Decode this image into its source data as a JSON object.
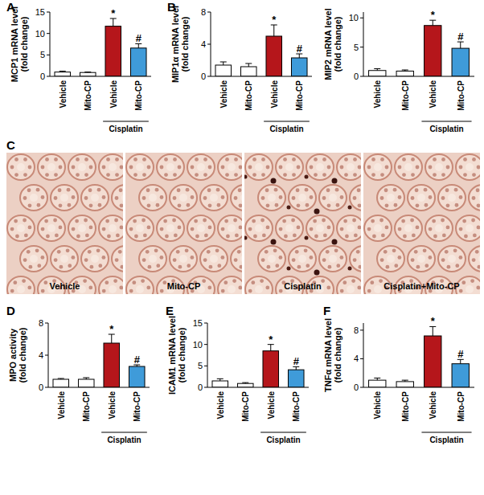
{
  "chart_data": [
    {
      "type": "bar",
      "panel": "A",
      "y_label": [
        "MCP1 mRNA level",
        "(fold change)"
      ],
      "categories": [
        "Vehicle",
        "Mito-CP",
        "Vehicle",
        "Mito-CP"
      ],
      "values": [
        1.0,
        0.9,
        11.7,
        6.6
      ],
      "errors": [
        0.2,
        0.1,
        1.8,
        1.0
      ],
      "colors": [
        "#ffffff",
        "#ffffff",
        "#b5161b",
        "#3f9bd9"
      ],
      "significance": [
        null,
        null,
        "*",
        "#"
      ],
      "annotation": "Cisplatin",
      "ylim": [
        0,
        15
      ],
      "yticks": [
        0,
        5,
        10,
        15
      ]
    },
    {
      "type": "bar",
      "panel": "B",
      "y_label": [
        "MIP1α mRNA level",
        "(fold change)"
      ],
      "categories": [
        "Vehicle",
        "Mito-CP",
        "Vehicle",
        "Mito-CP"
      ],
      "values": [
        1.4,
        1.2,
        5.0,
        2.3
      ],
      "errors": [
        0.4,
        0.4,
        1.4,
        0.5
      ],
      "colors": [
        "#ffffff",
        "#ffffff",
        "#b5161b",
        "#3f9bd9"
      ],
      "significance": [
        null,
        null,
        "*",
        "#"
      ],
      "annotation": "Cisplatin",
      "ylim": [
        0,
        8
      ],
      "yticks": [
        0,
        4,
        8
      ]
    },
    {
      "type": "bar",
      "y_label": [
        "MIP2 mRNA level",
        "(fold change)"
      ],
      "categories": [
        "Vehicle",
        "Mito-CP",
        "Vehicle",
        "Mito-CP"
      ],
      "values": [
        1.0,
        0.9,
        8.7,
        4.8
      ],
      "errors": [
        0.3,
        0.2,
        0.9,
        1.1
      ],
      "colors": [
        "#ffffff",
        "#ffffff",
        "#b5161b",
        "#3f9bd9"
      ],
      "significance": [
        null,
        null,
        "*",
        "#"
      ],
      "annotation": "Cisplatin",
      "ylim": [
        0,
        11
      ],
      "yticks": [
        0,
        5,
        10
      ]
    },
    {
      "type": "bar",
      "panel": "D",
      "y_label": [
        "MPO activity",
        "(fold change)"
      ],
      "categories": [
        "Vehicle",
        "Mito-CP",
        "Vehicle",
        "Mito-CP"
      ],
      "values": [
        1.0,
        1.0,
        5.5,
        2.6
      ],
      "errors": [
        0.1,
        0.2,
        1.1,
        0.2
      ],
      "colors": [
        "#ffffff",
        "#ffffff",
        "#b5161b",
        "#3f9bd9"
      ],
      "significance": [
        null,
        null,
        "*",
        "#"
      ],
      "annotation": "Cisplatin",
      "ylim": [
        0,
        8
      ],
      "yticks": [
        0,
        4,
        8
      ]
    },
    {
      "type": "bar",
      "panel": "E",
      "y_label": [
        "ICAM1 mRNA level",
        "(fold change)"
      ],
      "categories": [
        "Vehicle",
        "Mito-CP",
        "Vehicle",
        "Mito-CP"
      ],
      "values": [
        1.5,
        0.9,
        8.5,
        4.1
      ],
      "errors": [
        0.5,
        0.2,
        1.5,
        0.7
      ],
      "colors": [
        "#ffffff",
        "#ffffff",
        "#b5161b",
        "#3f9bd9"
      ],
      "significance": [
        null,
        null,
        "*",
        "#"
      ],
      "annotation": "Cisplatin",
      "ylim": [
        0,
        15
      ],
      "yticks": [
        0,
        5,
        10,
        15
      ]
    },
    {
      "type": "bar",
      "panel": "F",
      "y_label": [
        "TNFα mRNA level",
        "(fold change)"
      ],
      "categories": [
        "Vehicle",
        "Mito-CP",
        "Vehicle",
        "Mito-CP"
      ],
      "values": [
        1.0,
        0.8,
        7.2,
        3.3
      ],
      "errors": [
        0.3,
        0.2,
        1.3,
        0.6
      ],
      "colors": [
        "#ffffff",
        "#ffffff",
        "#b5161b",
        "#3f9bd9"
      ],
      "significance": [
        null,
        null,
        "*",
        "#"
      ],
      "annotation": "Cisplatin",
      "ylim": [
        0,
        9
      ],
      "yticks": [
        0,
        4,
        8
      ]
    }
  ],
  "micrographs": {
    "panel": "C",
    "labels": [
      "Vehicle",
      "Mito-CP",
      "Cisplatin",
      "Cisplatin+Mito-CP"
    ]
  }
}
